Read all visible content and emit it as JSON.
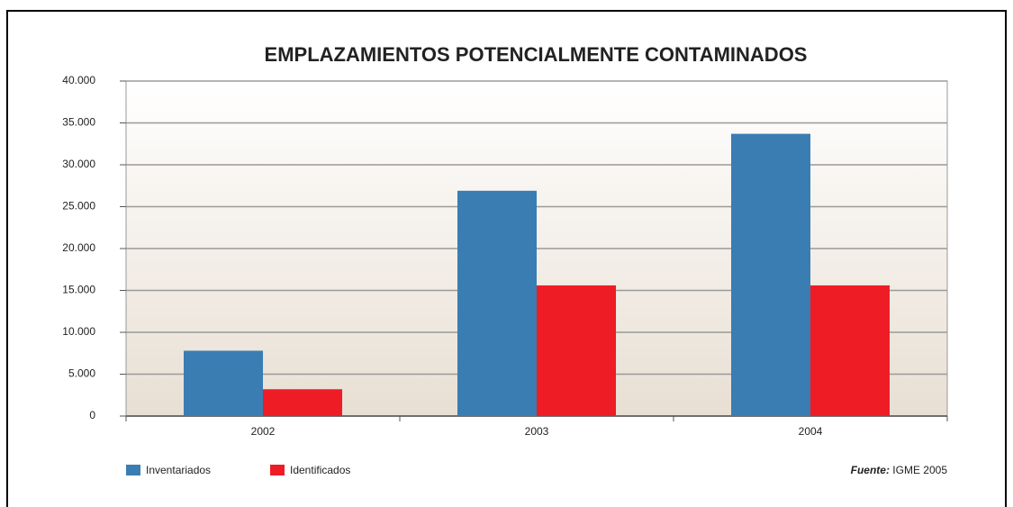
{
  "chart_data": {
    "type": "bar",
    "title": "EMPLAZAMIENTOS POTENCIALMENTE CONTAMINADOS",
    "categories": [
      "2002",
      "2003",
      "2004"
    ],
    "series": [
      {
        "name": "Inventariados",
        "color": "#3a7db3",
        "values": [
          7800,
          26900,
          33700
        ]
      },
      {
        "name": "Identificados",
        "color": "#ee1c25",
        "values": [
          3200,
          15600,
          15600
        ]
      }
    ],
    "ylim": [
      0,
      40000
    ],
    "yticks": [
      0,
      {
        "value": 5000,
        "label": "5.000"
      },
      {
        "value": 10000,
        "label": "10.000"
      },
      {
        "value": 15000,
        "label": "15.000"
      },
      {
        "value": 20000,
        "label": "20.000"
      },
      {
        "value": 25000,
        "label": "25.000"
      },
      {
        "value": 30000,
        "label": "30.000"
      },
      {
        "value": 35000,
        "label": "35.000"
      },
      {
        "value": 40000,
        "label": "40.000"
      }
    ],
    "grid": true,
    "legend": "bottom-left",
    "source_label": "Fuente:",
    "source": "IGME 2005"
  }
}
